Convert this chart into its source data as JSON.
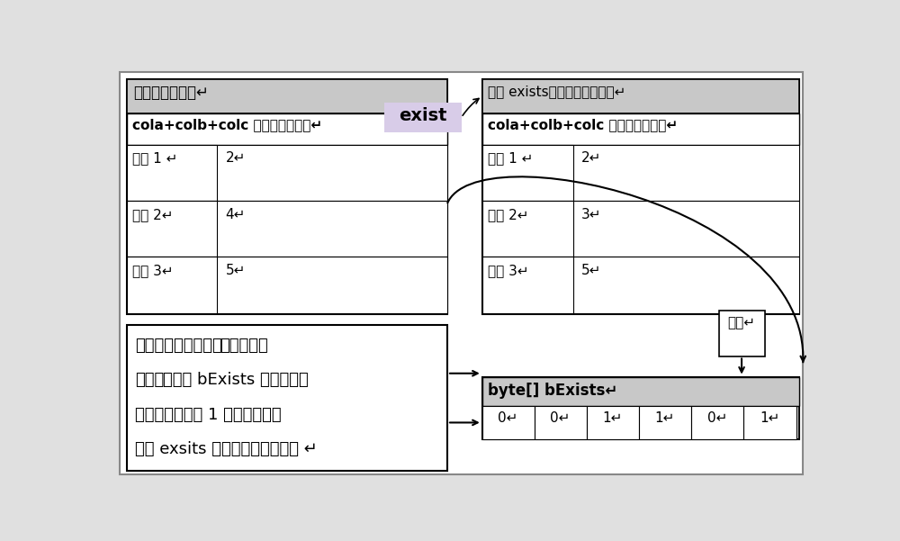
{
  "bg_color": "#e0e0e0",
  "white": "#ffffff",
  "black": "#000000",
  "header_gray": "#c8c8c8",
  "exist_bg": "#d8d0e0",
  "left_table": {
    "header": "左侧待过滤数据↵",
    "col_header": "cola+colb+colc 组合后的编码值↵",
    "rows": [
      [
        "记录 1 ↵",
        "2↵"
      ],
      [
        "记录 2↵",
        "4↵"
      ],
      [
        "记录 3↵",
        "5↵"
      ]
    ]
  },
  "right_table": {
    "header": "右侧 exists过滤条件数据列表↵",
    "col_header": "cola+colb+colc 组合后的编码值↵",
    "rows": [
      [
        "记录 1 ↵",
        "2↵"
      ],
      [
        "记录 2↵",
        "3↵"
      ],
      [
        "记录 3↵",
        "5↵"
      ]
    ]
  },
  "exist_label": "exist",
  "transform_label": "转化↵",
  "byte_header": "byte[] bExists↵",
  "byte_values": [
    "0↵",
    "0↵",
    "1↵",
    "1↵",
    "0↵",
    "1↵"
  ],
  "desc_line1_normal": "遍历数据，使用当前",
  "desc_line1_bold": "编码值为数",
  "desc_line2_bold": "组下标",
  "desc_line2_normal": "，找出 bExists 数组对应下",
  "desc_line3": "标值，如果值为 1 则表当前记录",
  "desc_line4": "符合 exsits 条件，反之不成立。 ↵"
}
